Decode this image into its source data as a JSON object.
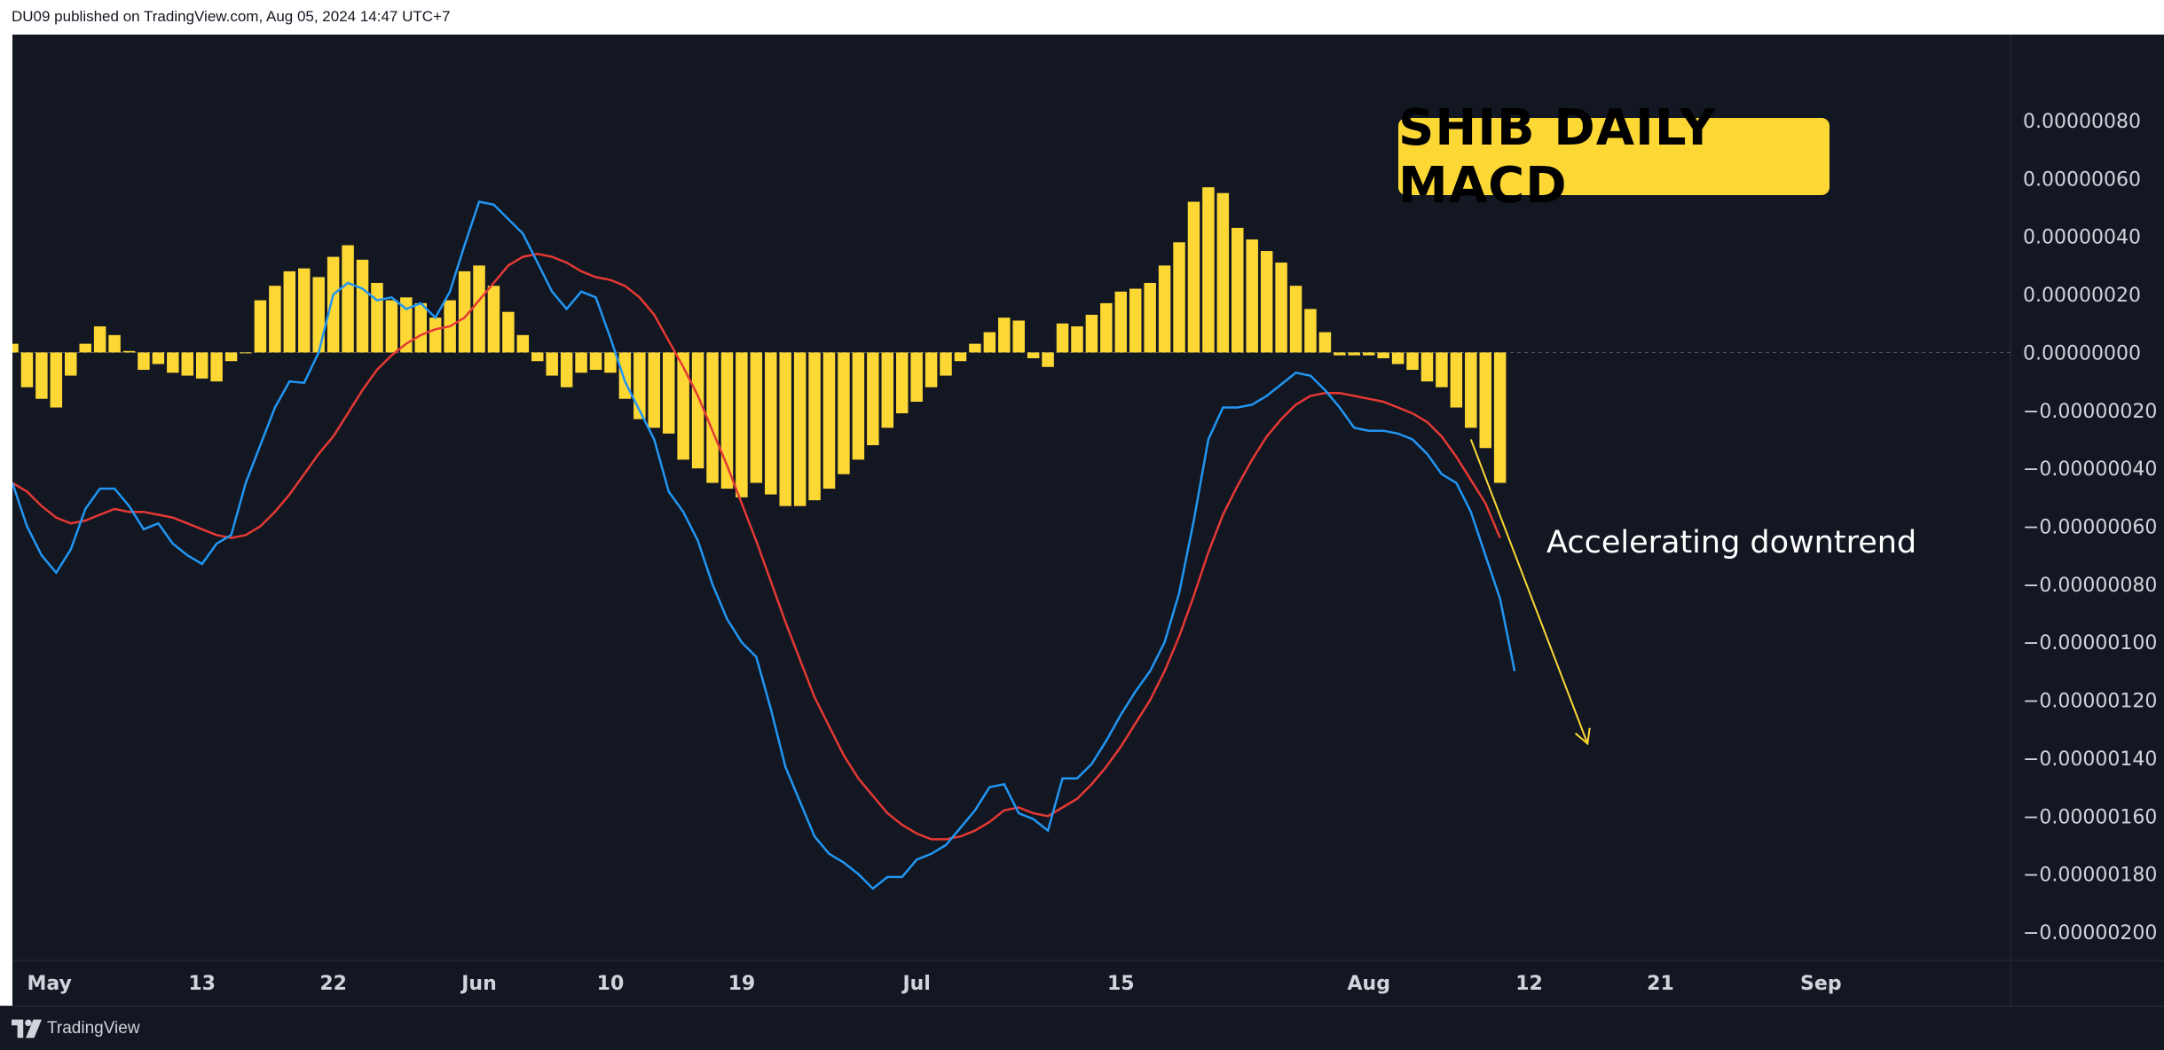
{
  "header": {
    "published_text": "DU09 published on TradingView.com, Aug 05, 2024 14:47 UTC+7"
  },
  "footer": {
    "brand": "TradingView",
    "logo_icon": "tradingview-logo-icon"
  },
  "colors": {
    "background": "#131722",
    "histogram": "#fdd835",
    "macd_line": "#2196f3",
    "signal_line": "#e53935",
    "arrow": "#fdd835",
    "badge": "#fdd835"
  },
  "chart_data": {
    "type": "bar",
    "title": "SHIB DAILY MACD",
    "annotation": "Accelerating downtrend",
    "ylim": [
      -2.1e-06,
      8e-07
    ],
    "y_ticks": [
      {
        "value": 8e-07,
        "label": "0.00000080"
      },
      {
        "value": 6e-07,
        "label": "0.00000060"
      },
      {
        "value": 4e-07,
        "label": "0.00000040"
      },
      {
        "value": 2e-07,
        "label": "0.00000020"
      },
      {
        "value": 0.0,
        "label": "0.00000000"
      },
      {
        "value": -2e-07,
        "label": "−0.00000020"
      },
      {
        "value": -4e-07,
        "label": "−0.00000040"
      },
      {
        "value": -6e-07,
        "label": "−0.00000060"
      },
      {
        "value": -8e-07,
        "label": "−0.00000080"
      },
      {
        "value": -1e-06,
        "label": "−0.00000100"
      },
      {
        "value": -1.2e-06,
        "label": "−0.00000120"
      },
      {
        "value": -1.4e-06,
        "label": "−0.00000140"
      },
      {
        "value": -1.6e-06,
        "label": "−0.00000160"
      },
      {
        "value": -1.8e-06,
        "label": "−0.00000180"
      },
      {
        "value": -2e-06,
        "label": "−0.00000200"
      }
    ],
    "x_ticks": [
      {
        "date": "2024-05-01",
        "label": "May"
      },
      {
        "date": "2024-05-13",
        "label": "13"
      },
      {
        "date": "2024-05-22",
        "label": "22"
      },
      {
        "date": "2024-06-01",
        "label": "Jun"
      },
      {
        "date": "2024-06-10",
        "label": "10"
      },
      {
        "date": "2024-06-19",
        "label": "19"
      },
      {
        "date": "2024-07-01",
        "label": "Jul"
      },
      {
        "date": "2024-07-15",
        "label": "15"
      },
      {
        "date": "2024-08-01",
        "label": "Aug"
      },
      {
        "date": "2024-08-12",
        "label": "12"
      },
      {
        "date": "2024-08-21",
        "label": "21"
      },
      {
        "date": "2024-09-01",
        "label": "Sep"
      }
    ],
    "x_range": [
      "2024-04-30",
      "2024-09-14"
    ],
    "series": [
      {
        "type": "histogram",
        "start_date": "2024-04-30",
        "values": [
          0.3,
          -1.2,
          -1.6,
          -1.9,
          -0.8,
          0.3,
          0.9,
          0.6,
          0.05,
          -0.6,
          -0.4,
          -0.7,
          -0.8,
          -0.9,
          -1.0,
          -0.3,
          0.0,
          1.8,
          2.3,
          2.8,
          2.9,
          2.6,
          3.3,
          3.7,
          3.2,
          2.4,
          1.8,
          1.9,
          1.7,
          1.2,
          1.8,
          2.8,
          3.0,
          2.3,
          1.4,
          0.6,
          -0.3,
          -0.8,
          -1.2,
          -0.7,
          -0.6,
          -0.7,
          -1.6,
          -2.3,
          -2.6,
          -2.8,
          -3.7,
          -4.0,
          -4.5,
          -4.7,
          -5.0,
          -4.5,
          -4.9,
          -5.3,
          -5.3,
          -5.1,
          -4.7,
          -4.2,
          -3.7,
          -3.2,
          -2.6,
          -2.1,
          -1.7,
          -1.2,
          -0.8,
          -0.3,
          0.3,
          0.7,
          1.2,
          1.1,
          -0.2,
          -0.5,
          1.0,
          0.9,
          1.3,
          1.7,
          2.1,
          2.2,
          2.4,
          3.0,
          3.8,
          5.2,
          5.7,
          5.5,
          4.3,
          3.9,
          3.5,
          3.1,
          2.3,
          1.5,
          0.7,
          -0.1,
          -0.1,
          -0.1,
          -0.2,
          -0.4,
          -0.6,
          -1.0,
          -1.2,
          -1.9,
          -2.6,
          -3.3,
          -4.5
        ]
      },
      {
        "type": "line",
        "start_date": "2024-04-30",
        "values": [
          -4.5,
          -6.0,
          -7.0,
          -7.6,
          -6.8,
          -5.4,
          -4.7,
          -4.7,
          -5.3,
          -6.1,
          -5.9,
          -6.6,
          -7.0,
          -7.3,
          -6.6,
          -6.3,
          -4.5,
          -3.2,
          -1.9,
          -1.0,
          -1.05,
          0.0,
          2.0,
          2.4,
          2.2,
          1.8,
          1.9,
          1.5,
          1.7,
          1.2,
          2.1,
          3.7,
          5.2,
          5.1,
          4.6,
          4.1,
          3.1,
          2.1,
          1.5,
          2.1,
          1.9,
          0.5,
          -1.0,
          -2.0,
          -3.0,
          -4.8,
          -5.5,
          -6.5,
          -8.0,
          -9.2,
          -10.0,
          -10.5,
          -12.3,
          -14.3,
          -15.5,
          -16.7,
          -17.3,
          -17.6,
          -18.0,
          -18.5,
          -18.1,
          -18.1,
          -17.5,
          -17.3,
          -17.0,
          -16.4,
          -15.8,
          -15.0,
          -14.9,
          -15.9,
          -16.1,
          -16.5,
          -14.7,
          -14.7,
          -14.2,
          -13.4,
          -12.5,
          -11.7,
          -11.0,
          -10.0,
          -8.3,
          -5.8,
          -3.0,
          -1.9,
          -1.9,
          -1.8,
          -1.5,
          -1.1,
          -0.7,
          -0.8,
          -1.3,
          -1.9,
          -2.6,
          -2.7,
          -2.7,
          -2.8,
          -3.0,
          -3.5,
          -4.2,
          -4.5,
          -5.5,
          -7.0,
          -8.5,
          -11.0
        ]
      },
      {
        "type": "line",
        "start_date": "2024-04-30",
        "values": [
          -4.5,
          -4.8,
          -5.3,
          -5.7,
          -5.9,
          -5.8,
          -5.6,
          -5.4,
          -5.5,
          -5.5,
          -5.6,
          -5.7,
          -5.9,
          -6.1,
          -6.3,
          -6.4,
          -6.3,
          -6.0,
          -5.5,
          -4.9,
          -4.2,
          -3.5,
          -2.9,
          -2.1,
          -1.3,
          -0.6,
          -0.1,
          0.3,
          0.6,
          0.8,
          0.9,
          1.2,
          1.8,
          2.4,
          3.0,
          3.3,
          3.4,
          3.3,
          3.1,
          2.8,
          2.6,
          2.5,
          2.3,
          1.9,
          1.3,
          0.4,
          -0.5,
          -1.5,
          -2.7,
          -3.9,
          -5.2,
          -6.5,
          -7.9,
          -9.3,
          -10.6,
          -11.9,
          -12.9,
          -13.9,
          -14.7,
          -15.3,
          -15.9,
          -16.3,
          -16.6,
          -16.8,
          -16.8,
          -16.7,
          -16.5,
          -16.2,
          -15.8,
          -15.7,
          -15.9,
          -16.0,
          -15.7,
          -15.4,
          -14.9,
          -14.3,
          -13.6,
          -12.8,
          -12.0,
          -11.0,
          -9.8,
          -8.4,
          -6.9,
          -5.6,
          -4.6,
          -3.7,
          -2.9,
          -2.3,
          -1.8,
          -1.5,
          -1.4,
          -1.4,
          -1.5,
          -1.6,
          -1.7,
          -1.9,
          -2.1,
          -2.4,
          -2.9,
          -3.6,
          -4.4,
          -5.2,
          -6.4
        ]
      }
    ],
    "value_scale": 1e-07,
    "arrow": {
      "from": {
        "date": "2024-08-08",
        "value": -3e-07
      },
      "to": {
        "date": "2024-08-16",
        "value": -1.35e-06
      }
    }
  }
}
